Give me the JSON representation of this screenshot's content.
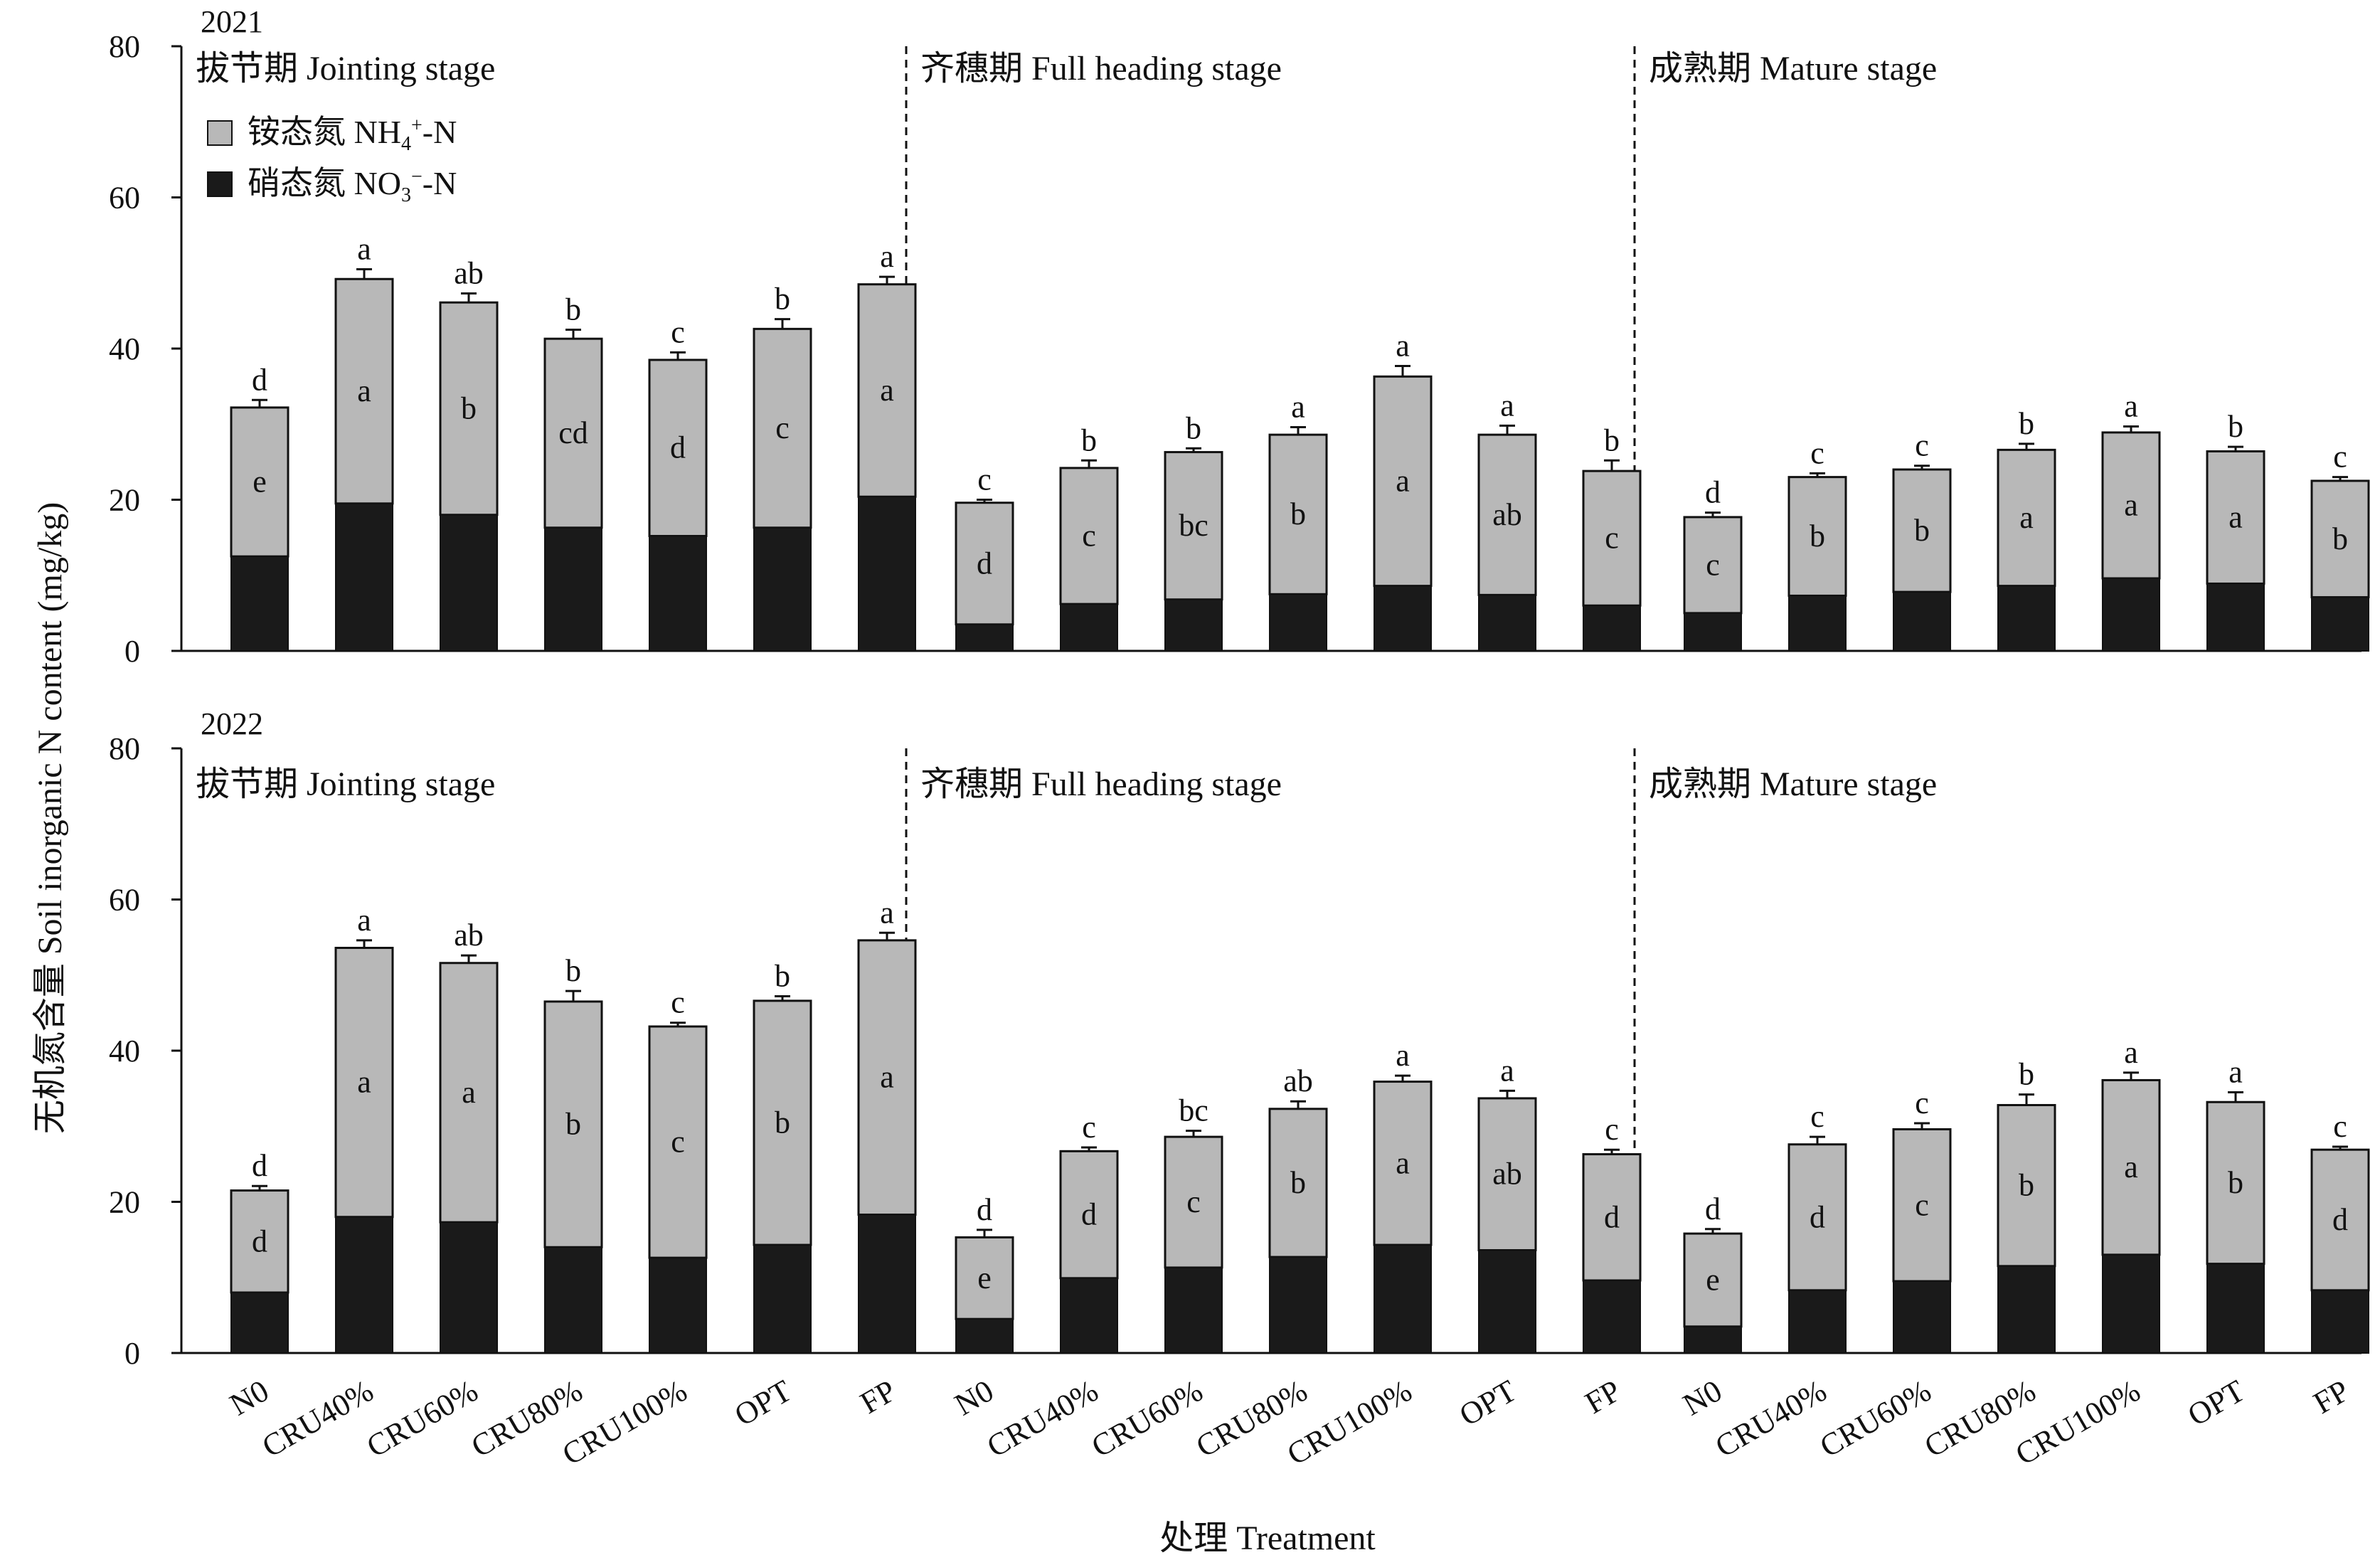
{
  "chart_data": {
    "type": "bar",
    "stacked": true,
    "ylabel": "无机氮含量 Soil inorganic N content (mg/kg)",
    "xlabel": "处理 Treatment",
    "ylim": [
      0,
      80
    ],
    "yticks": [
      0,
      20,
      40,
      60,
      80
    ],
    "categories": [
      "N0",
      "CRU40%",
      "CRU60%",
      "CRU80%",
      "CRU100%",
      "OPT",
      "FP"
    ],
    "legend": {
      "position": "top-left",
      "items": [
        {
          "label": "铵态氮 NH",
          "sub": "4",
          "sup": "+",
          "suffix": "-N",
          "color": "#b8b8b8"
        },
        {
          "label": "硝态氮 NO",
          "sub": "3",
          "sup": "−",
          "suffix": "-N",
          "color": "#1a1a1a"
        }
      ]
    },
    "colors": {
      "nh4": "#b8b8b8",
      "no3": "#1a1a1a"
    },
    "panels": [
      {
        "year": "2021",
        "groups": [
          {
            "stage": "拔节期 Jointing stage",
            "no3": [
              12.5,
              19.5,
              18.0,
              16.3,
              15.2,
              16.3,
              20.4
            ],
            "total": [
              32.2,
              49.2,
              46.1,
              41.3,
              38.5,
              42.6,
              48.5
            ],
            "error": [
              1.0,
              1.3,
              1.2,
              1.2,
              1.0,
              1.3,
              1.0
            ],
            "letters_total": [
              "d",
              "a",
              "ab",
              "b",
              "c",
              "b",
              "a"
            ],
            "letters_no3": [
              "e",
              "a",
              "b",
              "cd",
              "d",
              "c",
              "a"
            ]
          },
          {
            "stage": "齐穗期 Full heading stage",
            "no3": [
              3.5,
              6.2,
              6.8,
              7.5,
              8.6,
              7.4,
              6.0
            ],
            "total": [
              19.6,
              24.2,
              26.3,
              28.6,
              36.3,
              28.6,
              23.8
            ],
            "error": [
              0.4,
              1.0,
              0.5,
              1.0,
              1.4,
              1.2,
              1.4
            ],
            "letters_total": [
              "c",
              "b",
              "b",
              "a",
              "a",
              "a",
              "b"
            ],
            "letters_no3": [
              "d",
              "c",
              "bc",
              "b",
              "a",
              "ab",
              "c"
            ]
          },
          {
            "stage": "成熟期 Mature stage",
            "no3": [
              5.0,
              7.3,
              7.8,
              8.6,
              9.6,
              8.9,
              7.1
            ],
            "total": [
              17.7,
              23.0,
              24.0,
              26.6,
              28.9,
              26.4,
              22.5
            ],
            "error": [
              0.6,
              0.5,
              0.5,
              0.8,
              0.8,
              0.6,
              0.5
            ],
            "letters_total": [
              "d",
              "c",
              "c",
              "b",
              "a",
              "b",
              "c"
            ],
            "letters_no3": [
              "c",
              "b",
              "b",
              "a",
              "a",
              "a",
              "b"
            ]
          }
        ]
      },
      {
        "year": "2022",
        "groups": [
          {
            "stage": "拔节期 Jointing stage",
            "no3": [
              8.0,
              18.0,
              17.3,
              14.0,
              12.6,
              14.3,
              18.3
            ],
            "total": [
              21.5,
              53.6,
              51.6,
              46.5,
              43.2,
              46.6,
              54.6
            ],
            "error": [
              0.6,
              1.0,
              1.0,
              1.4,
              0.5,
              0.6,
              1.0
            ],
            "letters_total": [
              "d",
              "a",
              "ab",
              "b",
              "c",
              "b",
              "a"
            ],
            "letters_no3": [
              "d",
              "a",
              "a",
              "b",
              "c",
              "b",
              "a"
            ]
          },
          {
            "stage": "齐穗期 Full heading stage",
            "no3": [
              4.5,
              9.9,
              11.3,
              12.7,
              14.3,
              13.6,
              9.6
            ],
            "total": [
              15.3,
              26.7,
              28.6,
              32.3,
              35.9,
              33.7,
              26.3
            ],
            "error": [
              1.0,
              0.5,
              0.8,
              1.0,
              0.8,
              1.0,
              0.6
            ],
            "letters_total": [
              "d",
              "c",
              "bc",
              "ab",
              "a",
              "a",
              "c"
            ],
            "letters_no3": [
              "e",
              "d",
              "c",
              "b",
              "a",
              "ab",
              "d"
            ]
          },
          {
            "stage": "成熟期 Mature stage",
            "no3": [
              3.5,
              8.3,
              9.5,
              11.5,
              13.0,
              11.8,
              8.3
            ],
            "total": [
              15.8,
              27.6,
              29.6,
              32.8,
              36.1,
              33.2,
              26.9
            ],
            "error": [
              0.6,
              1.0,
              0.8,
              1.4,
              1.0,
              1.3,
              0.4
            ],
            "letters_total": [
              "d",
              "c",
              "c",
              "b",
              "a",
              "a",
              "c"
            ],
            "letters_no3": [
              "e",
              "d",
              "c",
              "b",
              "a",
              "b",
              "d"
            ]
          }
        ]
      }
    ]
  }
}
